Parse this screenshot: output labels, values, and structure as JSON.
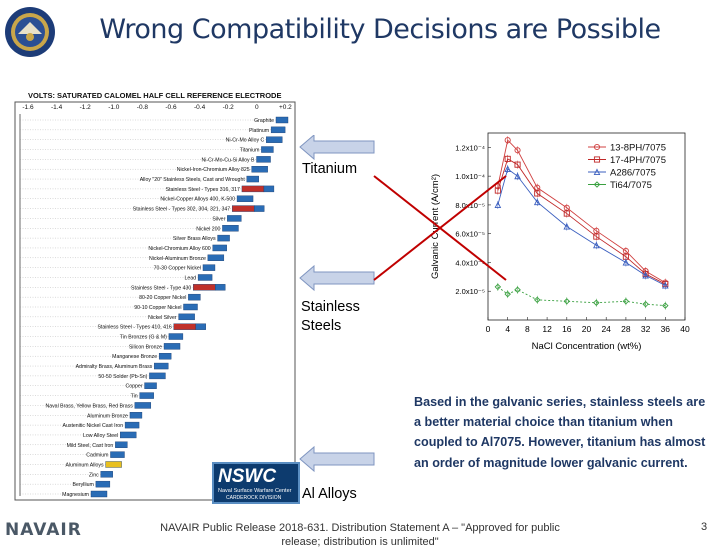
{
  "slide": {
    "title": "Wrong Compatibility Decisions are Possible",
    "footer": "NAVAIR Public Release 2018-631. Distribution Statement A – \"Approved for public release; distribution is unlimited\"",
    "page_number": "3",
    "brand": "NAVAIR"
  },
  "logo": {
    "nswc_main": "NSWC",
    "nswc_sub": "Naval Surface Warfare Center",
    "nswc_sub2": "CARDEROCK DIVISION"
  },
  "galvanic_series": {
    "title": "VOLTS: SATURATED CALOMEL HALF CELL REFERENCE ELECTRODE",
    "ticks": [
      "-1.6",
      "-1.4",
      "-1.2",
      "-1.0",
      "-0.8",
      "-0.6",
      "-0.4",
      "-0.2",
      "0",
      "+0.2"
    ],
    "materials": [
      {
        "name": "Graphite",
        "style": "blue"
      },
      {
        "name": "Platinum",
        "style": "blue"
      },
      {
        "name": "Ni-Cr-Mo Alloy C",
        "style": "blue"
      },
      {
        "name": "Titanium",
        "style": "blue"
      },
      {
        "name": "Ni-Cr-Mo-Cu-Si Alloy B",
        "style": "blue"
      },
      {
        "name": "Nickel-Iron-Chromium Alloy 825",
        "style": "blue"
      },
      {
        "name": "Alloy \"20\" Stainless Steels, Cast and Wrought",
        "style": "blue"
      },
      {
        "name": "Stainless Steel - Types 316, 317",
        "style": "red"
      },
      {
        "name": "Nickel-Copper Alloys 400, K-500",
        "style": "blue"
      },
      {
        "name": "Stainless Steel - Types 302, 304, 321, 347",
        "style": "red"
      },
      {
        "name": "Silver",
        "style": "blue"
      },
      {
        "name": "Nickel 200",
        "style": "blue"
      },
      {
        "name": "Silver Brass Alloys",
        "style": "blue"
      },
      {
        "name": "Nickel-Chromium Alloy 600",
        "style": "blue"
      },
      {
        "name": "Nickel-Aluminum Bronze",
        "style": "blue"
      },
      {
        "name": "70-30 Copper Nickel",
        "style": "blue"
      },
      {
        "name": "Lead",
        "style": "blue"
      },
      {
        "name": "Stainless Steel - Type 430",
        "style": "red"
      },
      {
        "name": "80-20 Copper Nickel",
        "style": "blue"
      },
      {
        "name": "90-10 Copper Nickel",
        "style": "blue"
      },
      {
        "name": "Nickel Silver",
        "style": "blue"
      },
      {
        "name": "Stainless Steel - Types 410, 416",
        "style": "red"
      },
      {
        "name": "Tin Bronzes (G & M)",
        "style": "blue"
      },
      {
        "name": "Silicon Bronze",
        "style": "blue"
      },
      {
        "name": "Manganese Bronze",
        "style": "blue"
      },
      {
        "name": "Admiralty Brass, Aluminum Brass",
        "style": "blue"
      },
      {
        "name": "50-50 Solder (Pb-Sn)",
        "style": "blue"
      },
      {
        "name": "Copper",
        "style": "blue"
      },
      {
        "name": "Tin",
        "style": "blue"
      },
      {
        "name": "Naval Brass, Yellow Brass, Red Brass",
        "style": "blue"
      },
      {
        "name": "Aluminum Bronze",
        "style": "blue"
      },
      {
        "name": "Austenitic Nickel Cast Iron",
        "style": "blue"
      },
      {
        "name": "Low Alloy Steel",
        "style": "blue"
      },
      {
        "name": "Mild Steel, Cast Iron",
        "style": "blue"
      },
      {
        "name": "Cadmium",
        "style": "blue"
      },
      {
        "name": "Aluminum Alloys",
        "style": "yellow"
      },
      {
        "name": "Zinc",
        "style": "blue"
      },
      {
        "name": "Beryllium",
        "style": "blue"
      },
      {
        "name": "Magnesium",
        "style": "blue"
      }
    ]
  },
  "labels": {
    "titanium": "Titanium",
    "stainless_line1": "Stainless",
    "stainless_line2": "Steels",
    "al_alloys": "Al Alloys"
  },
  "body_text": "Based in the galvanic series, stainless steels are a better material choice than titanium when coupled to Al7075. However, titanium has almost an order of magnitude lower galvanic current.",
  "colors": {
    "title": "#1f3864",
    "arrow_fill": "#c8d3e8",
    "arrow_stroke": "#7f95c0",
    "cross": "#c00000",
    "series": [
      "#d04040",
      "#c02828",
      "#3b5fbf",
      "#3aa040"
    ]
  },
  "chart_data": {
    "type": "line",
    "xlabel": "NaCl Concentration (wt%)",
    "ylabel": "Galvanic Current (A/cm²)",
    "xlim": [
      0,
      40
    ],
    "ylim": [
      0,
      0.00013
    ],
    "x_ticks": [
      "0",
      "4",
      "8",
      "12",
      "16",
      "20",
      "24",
      "28",
      "32",
      "36",
      "40"
    ],
    "y_ticks": [
      "2.0x10⁻⁵",
      "4.0x10⁻⁵",
      "6.0x10⁻⁵",
      "8.0x10⁻⁵",
      "1.0x10⁻⁴",
      "1.2x10⁻⁴"
    ],
    "y_tick_values": [
      2e-05,
      4e-05,
      6e-05,
      8e-05,
      0.0001,
      0.00012
    ],
    "x": [
      2,
      4,
      6,
      10,
      16,
      22,
      28,
      32,
      36
    ],
    "legend_position": "top-right",
    "series": [
      {
        "name": "13-8PH/7075",
        "marker": "circle",
        "values": [
          9.3e-05,
          0.000125,
          0.000118,
          9.2e-05,
          7.8e-05,
          6.2e-05,
          4.8e-05,
          3.4e-05,
          2.6e-05
        ]
      },
      {
        "name": "17-4PH/7075",
        "marker": "square",
        "values": [
          9e-05,
          0.000112,
          0.000108,
          8.8e-05,
          7.4e-05,
          5.8e-05,
          4.4e-05,
          3.2e-05,
          2.5e-05
        ]
      },
      {
        "name": "A286/7075",
        "marker": "triangle",
        "values": [
          8e-05,
          0.000105,
          0.0001,
          8.2e-05,
          6.5e-05,
          5.2e-05,
          4e-05,
          3.1e-05,
          2.4e-05
        ]
      },
      {
        "name": "Ti64/7075",
        "marker": "diamond",
        "values": [
          2.3e-05,
          1.8e-05,
          2.1e-05,
          1.4e-05,
          1.3e-05,
          1.2e-05,
          1.3e-05,
          1.1e-05,
          1e-05
        ]
      }
    ]
  }
}
